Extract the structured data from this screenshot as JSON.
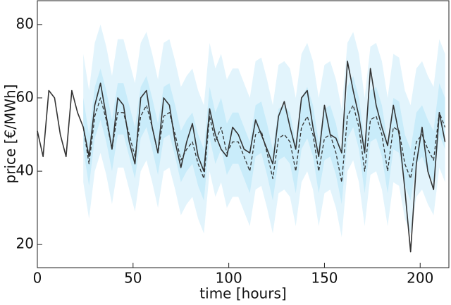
{
  "chart_data": {
    "type": "line",
    "xlabel": "time [hours]",
    "ylabel": "price [€/MWh]",
    "xlim": [
      0,
      215
    ],
    "ylim": [
      13.7,
      86.5
    ],
    "xticks": [
      0,
      50,
      100,
      150,
      200
    ],
    "yticks": [
      20,
      40,
      60,
      80
    ],
    "x": [
      0,
      3,
      6,
      9,
      12,
      15,
      18,
      21,
      24,
      27,
      30,
      33,
      36,
      39,
      42,
      45,
      48,
      51,
      54,
      57,
      60,
      63,
      66,
      69,
      72,
      75,
      78,
      81,
      84,
      87,
      90,
      93,
      96,
      99,
      102,
      105,
      108,
      111,
      114,
      117,
      120,
      123,
      126,
      129,
      132,
      135,
      138,
      141,
      144,
      147,
      150,
      153,
      156,
      159,
      162,
      165,
      168,
      171,
      174,
      177,
      180,
      183,
      186,
      189,
      192,
      195,
      198,
      201,
      204,
      207,
      210,
      213
    ],
    "bands": [
      {
        "color": "#e2f4fc",
        "lower": [
          null,
          null,
          null,
          null,
          null,
          null,
          null,
          null,
          37,
          27,
          40,
          45,
          39,
          31,
          41,
          41,
          35,
          29,
          40,
          43,
          37,
          30,
          40,
          41,
          35,
          28,
          31,
          33,
          27,
          23,
          40,
          33,
          37,
          30,
          33,
          33,
          29,
          25,
          35,
          36,
          30,
          23,
          34,
          35,
          33,
          25,
          37,
          40,
          35,
          25,
          34,
          35,
          30,
          22,
          40,
          43,
          37,
          25,
          39,
          40,
          35,
          25,
          37,
          36,
          27,
          23,
          33,
          35,
          31,
          28,
          41,
          37
        ],
        "upper": [
          null,
          null,
          null,
          null,
          null,
          null,
          null,
          null,
          72,
          62,
          75,
          80,
          74,
          66,
          76,
          76,
          70,
          64,
          75,
          78,
          72,
          65,
          75,
          76,
          70,
          63,
          66,
          68,
          62,
          58,
          75,
          68,
          72,
          65,
          68,
          68,
          64,
          60,
          70,
          71,
          65,
          58,
          69,
          70,
          68,
          60,
          72,
          75,
          70,
          60,
          69,
          70,
          65,
          57,
          75,
          78,
          72,
          60,
          74,
          75,
          70,
          60,
          72,
          71,
          62,
          58,
          68,
          70,
          66,
          63,
          76,
          72
        ]
      },
      {
        "color": "#c9ecfa",
        "lower": [
          null,
          null,
          null,
          null,
          null,
          null,
          null,
          null,
          46,
          36,
          49,
          54,
          48,
          40,
          50,
          50,
          44,
          38,
          49,
          52,
          46,
          39,
          49,
          50,
          44,
          37,
          40,
          42,
          36,
          32,
          49,
          42,
          46,
          39,
          42,
          42,
          38,
          34,
          44,
          45,
          39,
          32,
          43,
          44,
          42,
          34,
          46,
          49,
          44,
          34,
          43,
          44,
          39,
          31,
          49,
          52,
          46,
          34,
          48,
          49,
          44,
          34,
          46,
          45,
          36,
          32,
          42,
          44,
          40,
          37,
          50,
          46
        ],
        "upper": [
          null,
          null,
          null,
          null,
          null,
          null,
          null,
          null,
          60,
          50,
          63,
          68,
          62,
          54,
          64,
          64,
          58,
          52,
          63,
          66,
          60,
          53,
          63,
          64,
          58,
          51,
          54,
          56,
          50,
          46,
          63,
          56,
          60,
          53,
          56,
          56,
          52,
          48,
          58,
          59,
          53,
          46,
          57,
          58,
          56,
          48,
          60,
          63,
          58,
          48,
          57,
          58,
          53,
          45,
          63,
          66,
          60,
          48,
          62,
          63,
          58,
          48,
          60,
          59,
          50,
          46,
          56,
          58,
          54,
          51,
          64,
          60
        ]
      }
    ],
    "series": [
      {
        "color": "#333333",
        "dashed": false,
        "values": [
          51,
          44,
          62,
          60,
          50,
          44,
          62,
          56,
          52,
          44,
          58,
          64,
          55,
          46,
          60,
          58,
          48,
          42,
          60,
          62,
          52,
          45,
          60,
          58,
          48,
          41,
          48,
          53,
          44,
          40,
          57,
          50,
          46,
          44,
          52,
          50,
          46,
          45,
          54,
          50,
          46,
          42,
          55,
          59,
          52,
          46,
          60,
          62,
          52,
          44,
          58,
          50,
          49,
          45,
          70,
          62,
          55,
          45,
          68,
          58,
          52,
          47,
          58,
          50,
          35,
          18,
          42,
          52,
          40,
          35,
          56,
          48
        ]
      },
      {
        "color": "#333333",
        "dashed": true,
        "values": [
          null,
          null,
          null,
          null,
          null,
          null,
          null,
          null,
          52,
          42,
          55,
          60,
          54,
          46,
          56,
          56,
          50,
          44,
          55,
          58,
          52,
          45,
          55,
          56,
          50,
          43,
          46,
          48,
          42,
          38,
          55,
          48,
          52,
          45,
          48,
          48,
          44,
          40,
          50,
          51,
          45,
          38,
          49,
          50,
          48,
          40,
          52,
          55,
          50,
          40,
          49,
          50,
          45,
          37,
          55,
          58,
          52,
          40,
          54,
          55,
          50,
          40,
          52,
          51,
          42,
          38,
          48,
          50,
          46,
          43,
          56,
          52
        ]
      }
    ]
  }
}
